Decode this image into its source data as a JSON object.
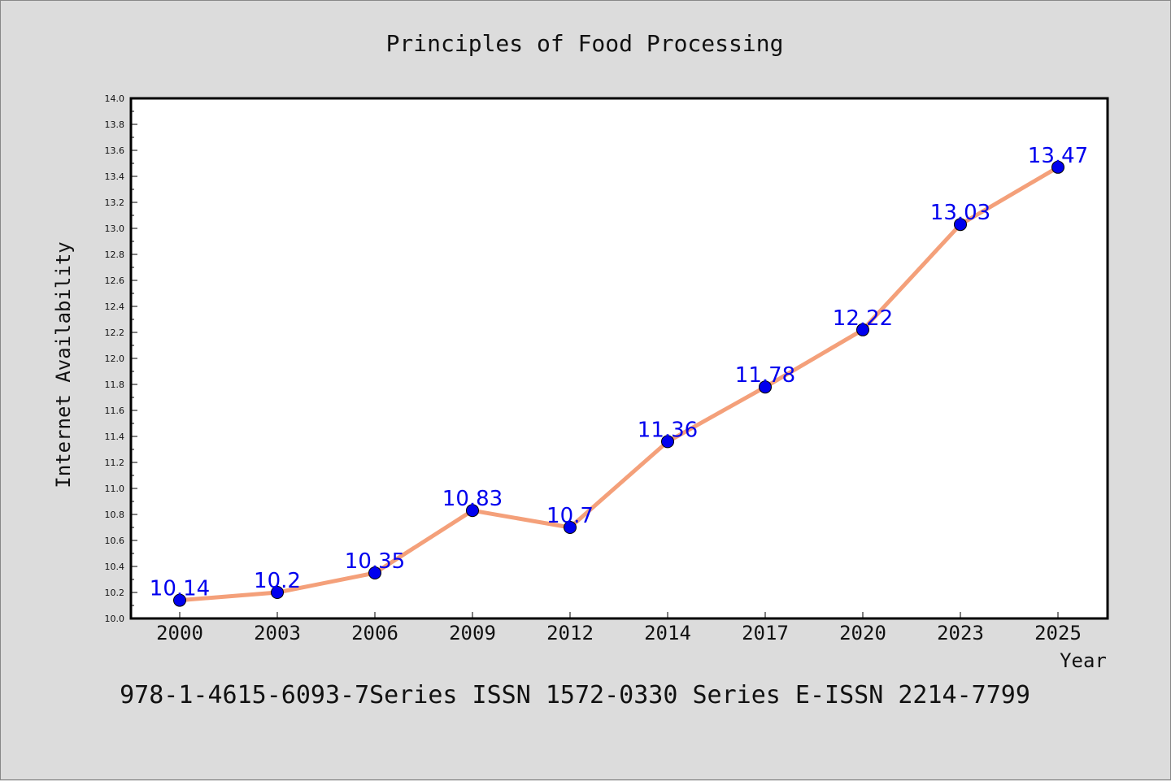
{
  "chart_data": {
    "type": "line",
    "title": "Principles of Food Processing",
    "xlabel": "Year",
    "ylabel": "Internet Availability",
    "categories": [
      "2000",
      "2003",
      "2006",
      "2009",
      "2012",
      "2014",
      "2017",
      "2020",
      "2023",
      "2025"
    ],
    "series": [
      {
        "values": [
          10.14,
          10.2,
          10.35,
          10.83,
          10.7,
          11.36,
          11.78,
          12.22,
          13.03,
          13.47
        ],
        "labels": [
          "10.14",
          "10.2",
          "10.35",
          "10.83",
          "10.7",
          "11.36",
          "11.78",
          "12.22",
          "13.03",
          "13.47"
        ],
        "line_color": "#f4a07a",
        "marker_color": "#0000ee",
        "label_color": "#0000ee"
      }
    ],
    "ylim": [
      10.0,
      14.0
    ],
    "yticks": [
      "10.0",
      "10.2",
      "10.4",
      "10.6",
      "10.8",
      "11.0",
      "11.2",
      "11.4",
      "11.6",
      "11.8",
      "12.0",
      "12.2",
      "12.4",
      "12.6",
      "12.8",
      "13.0",
      "13.2",
      "13.4",
      "13.6",
      "13.8",
      "14.0"
    ],
    "grid": false,
    "legend": "none"
  },
  "footer": {
    "text": "978-1-4615-6093-7Series ISSN 1572-0330 Series E-ISSN 2214-7799"
  },
  "colors": {
    "background": "#dcdcdc",
    "plot_background": "#ffffff",
    "axis": "#000000"
  }
}
